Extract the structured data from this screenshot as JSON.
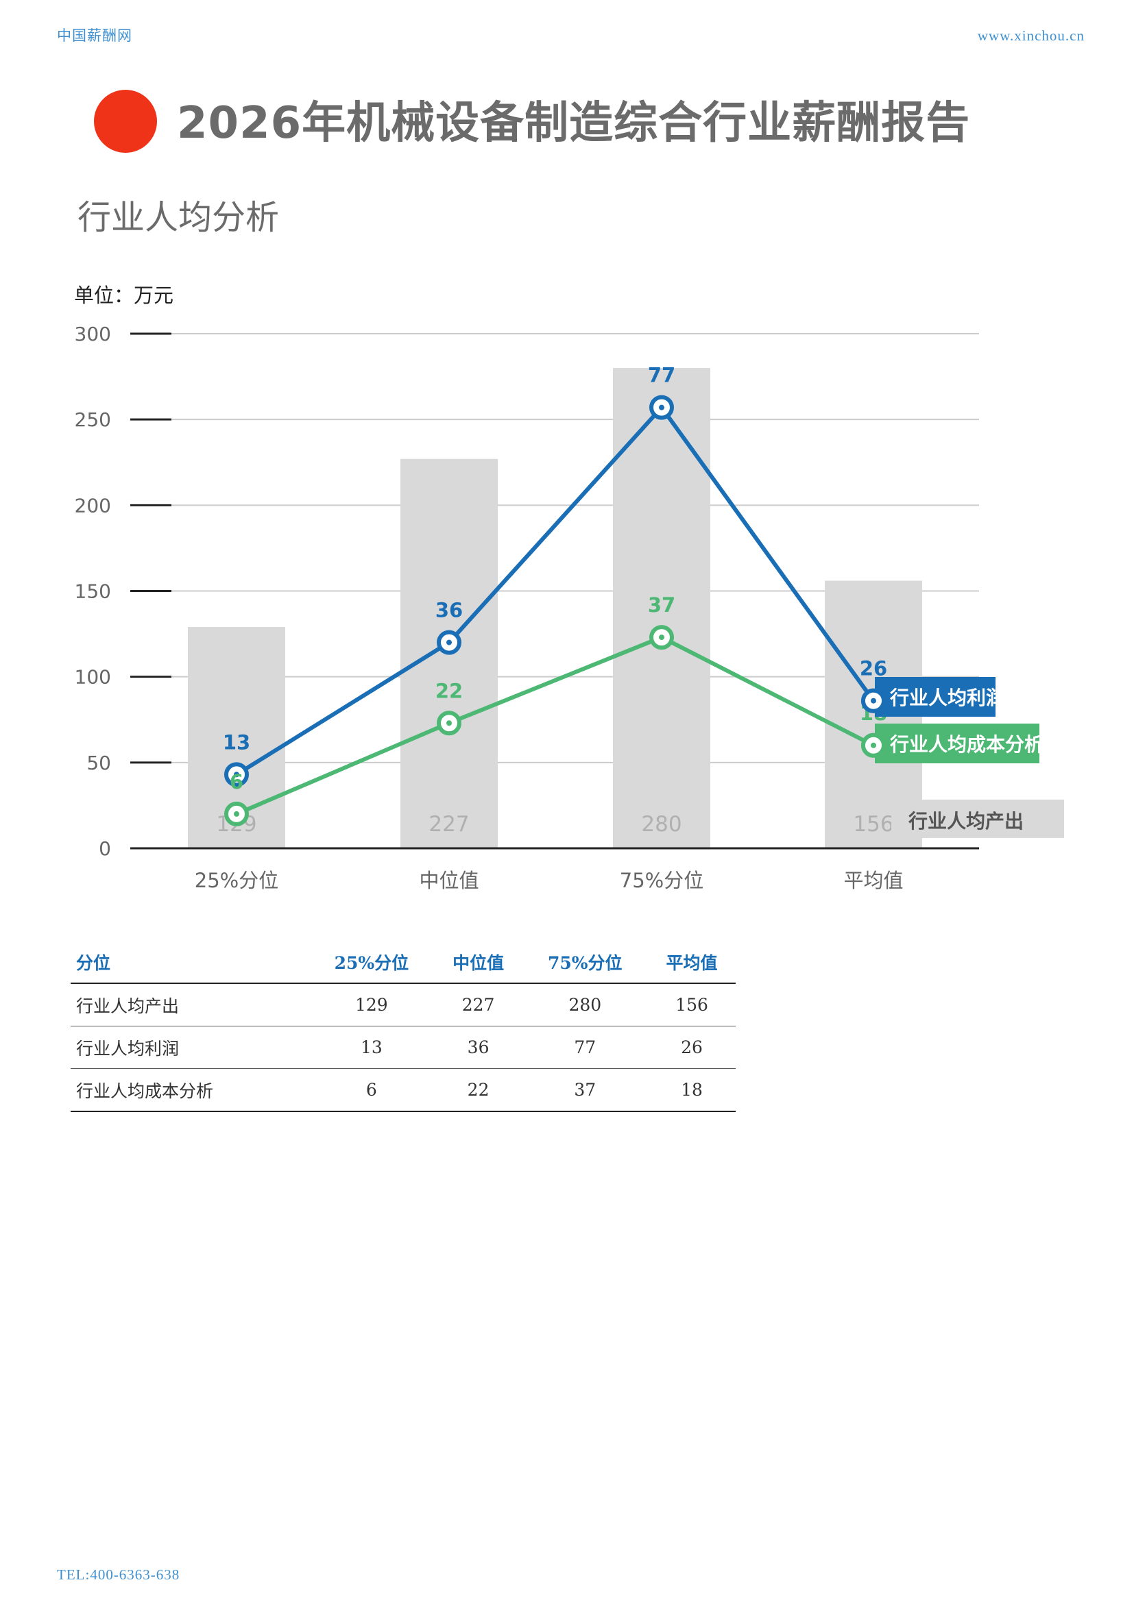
{
  "header": {
    "site_name": "中国薪酬网",
    "url": "www.xinchou.cn"
  },
  "title": "2026年机械设备制造综合行业薪酬报告",
  "section_title": "行业人均分析",
  "unit_label": "单位：万元",
  "colors": {
    "bar": "#d9d9d9",
    "profit": "#1a6eb5",
    "cost": "#4cb874",
    "grid": "#cccccc",
    "axis_text": "#666666",
    "bar_label": "#b0b0b0"
  },
  "chart_data": {
    "type": "bar",
    "categories": [
      "25%分位",
      "中位值",
      "75%分位",
      "平均值"
    ],
    "ylim": [
      0,
      300
    ],
    "yticks": [
      0,
      50,
      100,
      150,
      200,
      250,
      300
    ],
    "bars": {
      "name": "行业人均产出",
      "values": [
        129,
        227,
        280,
        156
      ]
    },
    "lines": [
      {
        "name": "行业人均利润",
        "values": [
          13,
          36,
          77,
          26
        ],
        "plot_y": [
          43,
          120,
          257,
          86
        ]
      },
      {
        "name": "行业人均成本分析",
        "values": [
          6,
          22,
          37,
          18
        ],
        "plot_y": [
          20,
          73,
          123,
          60
        ]
      }
    ]
  },
  "table": {
    "headers": [
      "分位",
      "25%分位",
      "中位值",
      "75%分位",
      "平均值"
    ],
    "rows": [
      [
        "行业人均产出",
        "129",
        "227",
        "280",
        "156"
      ],
      [
        "行业人均利润",
        "13",
        "36",
        "77",
        "26"
      ],
      [
        "行业人均成本分析",
        "6",
        "22",
        "37",
        "18"
      ]
    ]
  },
  "footer": "TEL:400-6363-638"
}
